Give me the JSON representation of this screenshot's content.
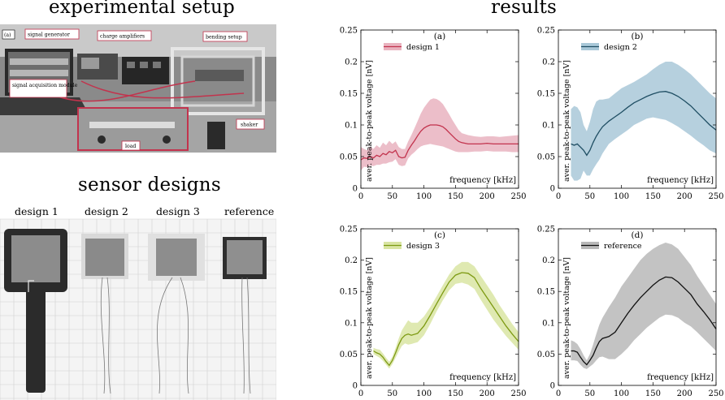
{
  "headings": {
    "setup": "experimental setup",
    "sensors": "sensor designs",
    "results": "results"
  },
  "setup_photo": {
    "panel_label": "(a)",
    "callouts": [
      "signal generator",
      "charge amplifiers",
      "bending setup",
      "signal acquisition module",
      "shaker",
      "load"
    ]
  },
  "sensor_photo": {
    "labels": [
      "design 1",
      "design 2",
      "design 3",
      "reference"
    ]
  },
  "colors": {
    "design1": "#c2334d",
    "design2": "#1f4e63",
    "design3": "#7d9a12",
    "reference": "#111111",
    "band1": "#e9b3bf",
    "band2": "#a9c8d8",
    "band3": "#d9e5a3",
    "band_ref": "#b9b9b9"
  },
  "chart_data": [
    {
      "type": "line",
      "panel_label": "(a)",
      "series": [
        {
          "name": "design 1"
        }
      ],
      "xlabel": "frequency [kHz]",
      "ylabel": "aver. peak-to-peak voltage [nV]",
      "xlim": [
        0,
        250
      ],
      "ylim": [
        0,
        0.25
      ],
      "xticks": [
        "0",
        "50",
        "100",
        "150",
        "200",
        "250"
      ],
      "yticks": [
        "0",
        "0.05",
        "0.1",
        "0.15",
        "0.2",
        "0.25"
      ],
      "x": [
        0,
        5,
        10,
        15,
        20,
        25,
        30,
        35,
        40,
        45,
        50,
        55,
        60,
        65,
        70,
        75,
        80,
        85,
        90,
        95,
        100,
        105,
        110,
        115,
        120,
        125,
        130,
        135,
        140,
        145,
        150,
        155,
        160,
        170,
        180,
        190,
        200,
        210,
        220,
        230,
        240,
        250
      ],
      "mean": [
        0.045,
        0.048,
        0.047,
        0.05,
        0.048,
        0.052,
        0.05,
        0.055,
        0.053,
        0.058,
        0.056,
        0.06,
        0.05,
        0.048,
        0.049,
        0.06,
        0.068,
        0.075,
        0.083,
        0.09,
        0.095,
        0.098,
        0.1,
        0.1,
        0.1,
        0.099,
        0.097,
        0.093,
        0.088,
        0.083,
        0.078,
        0.074,
        0.072,
        0.07,
        0.07,
        0.07,
        0.071,
        0.07,
        0.07,
        0.07,
        0.07,
        0.07
      ],
      "upper": [
        0.065,
        0.062,
        0.06,
        0.066,
        0.062,
        0.068,
        0.064,
        0.072,
        0.068,
        0.075,
        0.07,
        0.074,
        0.065,
        0.062,
        0.062,
        0.074,
        0.084,
        0.095,
        0.106,
        0.118,
        0.127,
        0.134,
        0.14,
        0.142,
        0.141,
        0.138,
        0.133,
        0.125,
        0.117,
        0.108,
        0.1,
        0.092,
        0.087,
        0.084,
        0.082,
        0.081,
        0.082,
        0.082,
        0.081,
        0.082,
        0.083,
        0.084
      ],
      "lower": [
        0.028,
        0.034,
        0.033,
        0.036,
        0.035,
        0.037,
        0.037,
        0.039,
        0.039,
        0.041,
        0.042,
        0.046,
        0.037,
        0.035,
        0.036,
        0.047,
        0.053,
        0.057,
        0.062,
        0.066,
        0.068,
        0.069,
        0.07,
        0.069,
        0.068,
        0.067,
        0.066,
        0.064,
        0.062,
        0.06,
        0.058,
        0.057,
        0.057,
        0.057,
        0.058,
        0.058,
        0.059,
        0.058,
        0.058,
        0.058,
        0.057,
        0.057
      ]
    },
    {
      "type": "line",
      "panel_label": "(b)",
      "series": [
        {
          "name": "design 2"
        }
      ],
      "xlabel": "frequency [kHz]",
      "ylabel": "aver. peak-to-peak voltage [nV]",
      "xlim": [
        0,
        250
      ],
      "ylim": [
        0,
        0.25
      ],
      "xticks": [
        "0",
        "50",
        "100",
        "150",
        "200",
        "250"
      ],
      "yticks": [
        "0",
        "0.05",
        "0.1",
        "0.15",
        "0.2",
        "0.25"
      ],
      "x": [
        20,
        25,
        30,
        35,
        40,
        45,
        50,
        55,
        60,
        65,
        70,
        80,
        90,
        100,
        110,
        120,
        130,
        140,
        150,
        160,
        170,
        180,
        190,
        200,
        210,
        220,
        230,
        240,
        250
      ],
      "mean": [
        0.07,
        0.068,
        0.07,
        0.065,
        0.06,
        0.052,
        0.06,
        0.072,
        0.082,
        0.09,
        0.097,
        0.106,
        0.113,
        0.12,
        0.128,
        0.135,
        0.14,
        0.145,
        0.149,
        0.152,
        0.153,
        0.15,
        0.145,
        0.138,
        0.13,
        0.12,
        0.11,
        0.1,
        0.092
      ],
      "upper": [
        0.125,
        0.13,
        0.128,
        0.12,
        0.1,
        0.09,
        0.105,
        0.125,
        0.137,
        0.14,
        0.14,
        0.142,
        0.15,
        0.158,
        0.163,
        0.168,
        0.174,
        0.18,
        0.188,
        0.195,
        0.2,
        0.2,
        0.195,
        0.188,
        0.18,
        0.17,
        0.16,
        0.15,
        0.142
      ],
      "lower": [
        0.02,
        0.012,
        0.012,
        0.015,
        0.028,
        0.02,
        0.02,
        0.03,
        0.038,
        0.045,
        0.055,
        0.07,
        0.078,
        0.085,
        0.092,
        0.1,
        0.105,
        0.11,
        0.112,
        0.11,
        0.108,
        0.103,
        0.097,
        0.09,
        0.083,
        0.075,
        0.068,
        0.06,
        0.055
      ]
    },
    {
      "type": "line",
      "panel_label": "(c)",
      "series": [
        {
          "name": "design 3"
        }
      ],
      "xlabel": "frequency [kHz]",
      "ylabel": "aver. peak-to-peak voltage [nV]",
      "xlim": [
        0,
        250
      ],
      "ylim": [
        0,
        0.25
      ],
      "xticks": [
        "0",
        "50",
        "100",
        "150",
        "200",
        "250"
      ],
      "yticks": [
        "0",
        "0.05",
        "0.1",
        "0.15",
        "0.2",
        "0.25"
      ],
      "x": [
        20,
        25,
        30,
        35,
        40,
        45,
        50,
        55,
        60,
        65,
        70,
        75,
        80,
        90,
        100,
        110,
        120,
        130,
        140,
        150,
        160,
        170,
        180,
        190,
        200,
        210,
        220,
        230,
        240,
        250
      ],
      "mean": [
        0.055,
        0.052,
        0.05,
        0.045,
        0.038,
        0.032,
        0.04,
        0.052,
        0.065,
        0.075,
        0.08,
        0.082,
        0.08,
        0.083,
        0.095,
        0.112,
        0.13,
        0.148,
        0.165,
        0.176,
        0.18,
        0.179,
        0.172,
        0.155,
        0.14,
        0.125,
        0.11,
        0.095,
        0.082,
        0.07
      ],
      "upper": [
        0.06,
        0.058,
        0.057,
        0.051,
        0.044,
        0.038,
        0.046,
        0.06,
        0.075,
        0.088,
        0.096,
        0.104,
        0.1,
        0.1,
        0.11,
        0.125,
        0.142,
        0.16,
        0.177,
        0.19,
        0.197,
        0.197,
        0.19,
        0.175,
        0.16,
        0.145,
        0.128,
        0.113,
        0.098,
        0.085
      ],
      "lower": [
        0.05,
        0.047,
        0.044,
        0.039,
        0.033,
        0.027,
        0.034,
        0.044,
        0.054,
        0.063,
        0.067,
        0.065,
        0.066,
        0.069,
        0.08,
        0.098,
        0.118,
        0.136,
        0.152,
        0.162,
        0.164,
        0.161,
        0.154,
        0.137,
        0.121,
        0.105,
        0.092,
        0.079,
        0.068,
        0.057
      ]
    },
    {
      "type": "line",
      "panel_label": "(d)",
      "series": [
        {
          "name": "reference"
        }
      ],
      "xlabel": "frequency [kHz]",
      "ylabel": "aver. peak-to-peak voltage [nV]",
      "xlim": [
        0,
        250
      ],
      "ylim": [
        0,
        0.25
      ],
      "xticks": [
        "0",
        "50",
        "100",
        "150",
        "200",
        "250"
      ],
      "yticks": [
        "0",
        "0.05",
        "0.1",
        "0.15",
        "0.2",
        "0.25"
      ],
      "x": [
        20,
        25,
        30,
        35,
        40,
        45,
        50,
        55,
        60,
        65,
        70,
        80,
        90,
        100,
        110,
        120,
        130,
        140,
        150,
        160,
        170,
        180,
        190,
        200,
        210,
        220,
        230,
        240,
        250
      ],
      "mean": [
        0.055,
        0.055,
        0.053,
        0.045,
        0.038,
        0.033,
        0.04,
        0.048,
        0.06,
        0.07,
        0.075,
        0.078,
        0.085,
        0.1,
        0.115,
        0.128,
        0.14,
        0.15,
        0.16,
        0.168,
        0.173,
        0.172,
        0.165,
        0.155,
        0.145,
        0.13,
        0.118,
        0.105,
        0.09
      ],
      "upper": [
        0.072,
        0.07,
        0.066,
        0.058,
        0.048,
        0.04,
        0.05,
        0.065,
        0.082,
        0.097,
        0.108,
        0.125,
        0.14,
        0.158,
        0.172,
        0.186,
        0.2,
        0.21,
        0.218,
        0.224,
        0.228,
        0.225,
        0.218,
        0.205,
        0.192,
        0.175,
        0.16,
        0.145,
        0.13
      ],
      "lower": [
        0.04,
        0.04,
        0.039,
        0.033,
        0.028,
        0.026,
        0.03,
        0.034,
        0.04,
        0.045,
        0.046,
        0.042,
        0.042,
        0.05,
        0.06,
        0.072,
        0.082,
        0.092,
        0.1,
        0.108,
        0.113,
        0.112,
        0.108,
        0.1,
        0.094,
        0.085,
        0.075,
        0.065,
        0.055
      ]
    }
  ]
}
